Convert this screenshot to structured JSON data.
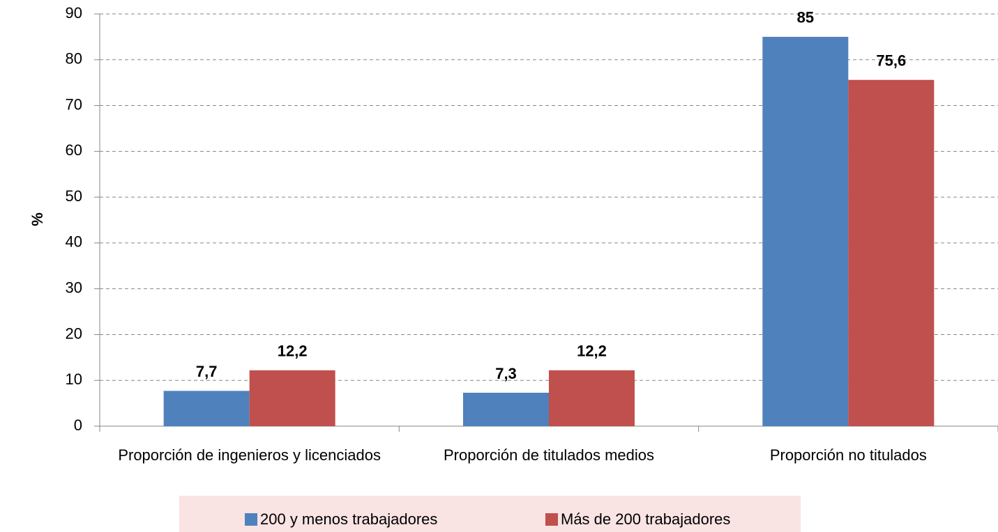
{
  "chart_data": {
    "type": "bar",
    "y_label": "%",
    "categories": [
      "Proporción de ingenieros y licenciados",
      "Proporción de titulados medios",
      "Proporción no titulados"
    ],
    "series": [
      {
        "name": "200 y menos trabajadores",
        "color": "#4f81bd",
        "values": [
          7.7,
          7.3,
          85
        ],
        "value_labels": [
          "7,7",
          "7,3",
          "85"
        ]
      },
      {
        "name": "Más de 200 trabajadores",
        "color": "#c0504d",
        "values": [
          12.2,
          12.2,
          75.6
        ],
        "value_labels": [
          "12,2",
          "12,2",
          "75,6"
        ]
      }
    ],
    "ylim": [
      0,
      90
    ],
    "yticks": [
      0,
      10,
      20,
      30,
      40,
      50,
      60,
      70,
      80,
      90
    ],
    "grid": true,
    "legend": "bottom"
  }
}
